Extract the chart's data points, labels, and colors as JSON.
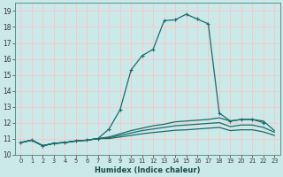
{
  "title": "",
  "xlabel": "Humidex (Indice chaleur)",
  "ylabel": "",
  "background_color": "#cce9e9",
  "grid_color": "#f5c8c8",
  "line_color": "#1a6b6b",
  "xlim": [
    -0.5,
    23.5
  ],
  "ylim": [
    10.0,
    19.5
  ],
  "yticks": [
    10,
    11,
    12,
    13,
    14,
    15,
    16,
    17,
    18,
    19
  ],
  "xticks": [
    0,
    1,
    2,
    3,
    4,
    5,
    6,
    7,
    8,
    9,
    10,
    11,
    12,
    13,
    14,
    15,
    16,
    17,
    18,
    19,
    20,
    21,
    22,
    23
  ],
  "lines": [
    {
      "x": [
        0,
        1,
        2,
        3,
        4,
        5,
        6,
        7,
        8,
        9,
        10,
        11,
        12,
        13,
        14,
        15,
        16,
        17,
        18,
        19,
        20,
        21,
        22
      ],
      "y": [
        10.75,
        10.9,
        10.55,
        10.7,
        10.75,
        10.85,
        10.9,
        11.0,
        11.6,
        12.8,
        15.3,
        16.2,
        16.6,
        18.4,
        18.45,
        18.8,
        18.5,
        18.2,
        12.6,
        12.1,
        12.2,
        12.2,
        12.0
      ],
      "marker": true
    },
    {
      "x": [
        0,
        1,
        2,
        3,
        4,
        5,
        6,
        7,
        8,
        9,
        10,
        11,
        12,
        13,
        14,
        15,
        16,
        17,
        18,
        19,
        20,
        21,
        22,
        23
      ],
      "y": [
        10.75,
        10.9,
        10.55,
        10.7,
        10.75,
        10.85,
        10.9,
        11.0,
        11.1,
        11.3,
        11.5,
        11.65,
        11.8,
        11.9,
        12.05,
        12.1,
        12.15,
        12.2,
        12.3,
        12.1,
        12.2,
        12.2,
        12.1,
        11.5
      ],
      "marker": false
    },
    {
      "x": [
        0,
        1,
        2,
        3,
        4,
        5,
        6,
        7,
        8,
        9,
        10,
        11,
        12,
        13,
        14,
        15,
        16,
        17,
        18,
        19,
        20,
        21,
        22,
        23
      ],
      "y": [
        10.75,
        10.9,
        10.55,
        10.7,
        10.75,
        10.85,
        10.9,
        11.0,
        11.05,
        11.2,
        11.35,
        11.5,
        11.6,
        11.7,
        11.8,
        11.85,
        11.9,
        11.95,
        12.0,
        11.75,
        11.85,
        11.85,
        11.7,
        11.4
      ],
      "marker": false
    },
    {
      "x": [
        0,
        1,
        2,
        3,
        4,
        5,
        6,
        7,
        8,
        9,
        10,
        11,
        12,
        13,
        14,
        15,
        16,
        17,
        18,
        19,
        20,
        21,
        22,
        23
      ],
      "y": [
        10.75,
        10.9,
        10.55,
        10.7,
        10.75,
        10.85,
        10.9,
        11.0,
        11.0,
        11.1,
        11.2,
        11.3,
        11.38,
        11.45,
        11.52,
        11.55,
        11.6,
        11.65,
        11.7,
        11.5,
        11.55,
        11.55,
        11.42,
        11.2
      ],
      "marker": false
    }
  ]
}
